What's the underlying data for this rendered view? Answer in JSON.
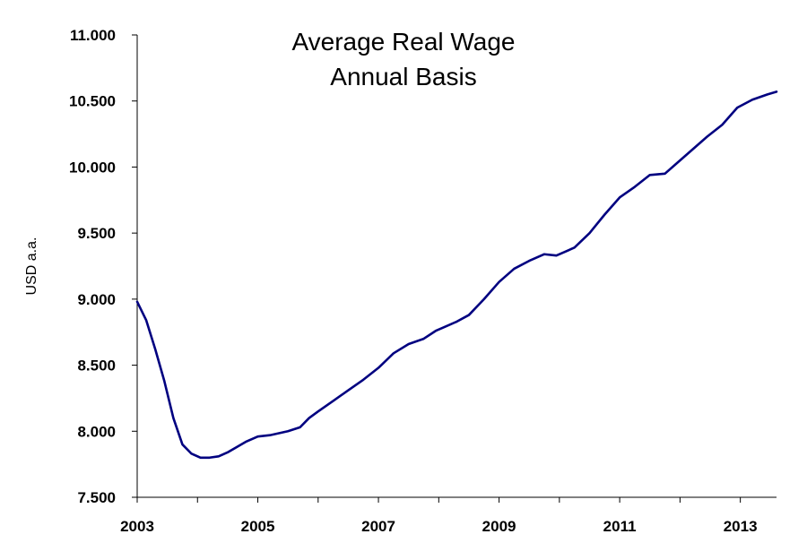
{
  "chart_data": {
    "type": "line",
    "title": [
      "Average Real Wage",
      "Annual Basis"
    ],
    "xlabel": "",
    "ylabel": "USD a.a.",
    "xlim": [
      2003,
      2013.6
    ],
    "ylim": [
      7500,
      11000
    ],
    "y_ticks": [
      {
        "value": 7500,
        "label": "7.500"
      },
      {
        "value": 8000,
        "label": "8.000"
      },
      {
        "value": 8500,
        "label": "8.500"
      },
      {
        "value": 9000,
        "label": "9.000"
      },
      {
        "value": 9500,
        "label": "9.500"
      },
      {
        "value": 10000,
        "label": "10.000"
      },
      {
        "value": 10500,
        "label": "10.500"
      },
      {
        "value": 11000,
        "label": "11.000"
      }
    ],
    "x_ticks": [
      {
        "value": 2003,
        "label": "2003"
      },
      {
        "value": 2005,
        "label": "2005"
      },
      {
        "value": 2007,
        "label": "2007"
      },
      {
        "value": 2009,
        "label": "2009"
      },
      {
        "value": 2011,
        "label": "2011"
      },
      {
        "value": 2013,
        "label": "2013"
      }
    ],
    "grid": false,
    "line_color": "#000080",
    "series": [
      {
        "x": [
          2003.0,
          2003.15,
          2003.3,
          2003.45,
          2003.6,
          2003.75,
          2003.9,
          2004.05,
          2004.2,
          2004.35,
          2004.5,
          2004.65,
          2004.8,
          2005.0,
          2005.2,
          2005.5,
          2005.7,
          2005.85,
          2006.0,
          2006.25,
          2006.5,
          2006.75,
          2007.0,
          2007.25,
          2007.5,
          2007.75,
          2007.95,
          2008.1,
          2008.3,
          2008.5,
          2008.75,
          2009.0,
          2009.25,
          2009.5,
          2009.75,
          2009.95,
          2010.1,
          2010.25,
          2010.5,
          2010.75,
          2011.0,
          2011.25,
          2011.5,
          2011.75,
          2011.95,
          2012.2,
          2012.45,
          2012.7,
          2012.95,
          2013.2,
          2013.45,
          2013.6
        ],
        "y": [
          8980,
          8840,
          8620,
          8380,
          8100,
          7900,
          7830,
          7800,
          7800,
          7810,
          7840,
          7880,
          7920,
          7960,
          7970,
          8000,
          8030,
          8100,
          8150,
          8230,
          8310,
          8390,
          8480,
          8590,
          8660,
          8700,
          8760,
          8790,
          8830,
          8880,
          9000,
          9130,
          9230,
          9290,
          9340,
          9330,
          9360,
          9390,
          9500,
          9640,
          9770,
          9850,
          9940,
          9950,
          10030,
          10130,
          10230,
          10320,
          10450,
          10510,
          10550,
          10570
        ]
      }
    ]
  }
}
